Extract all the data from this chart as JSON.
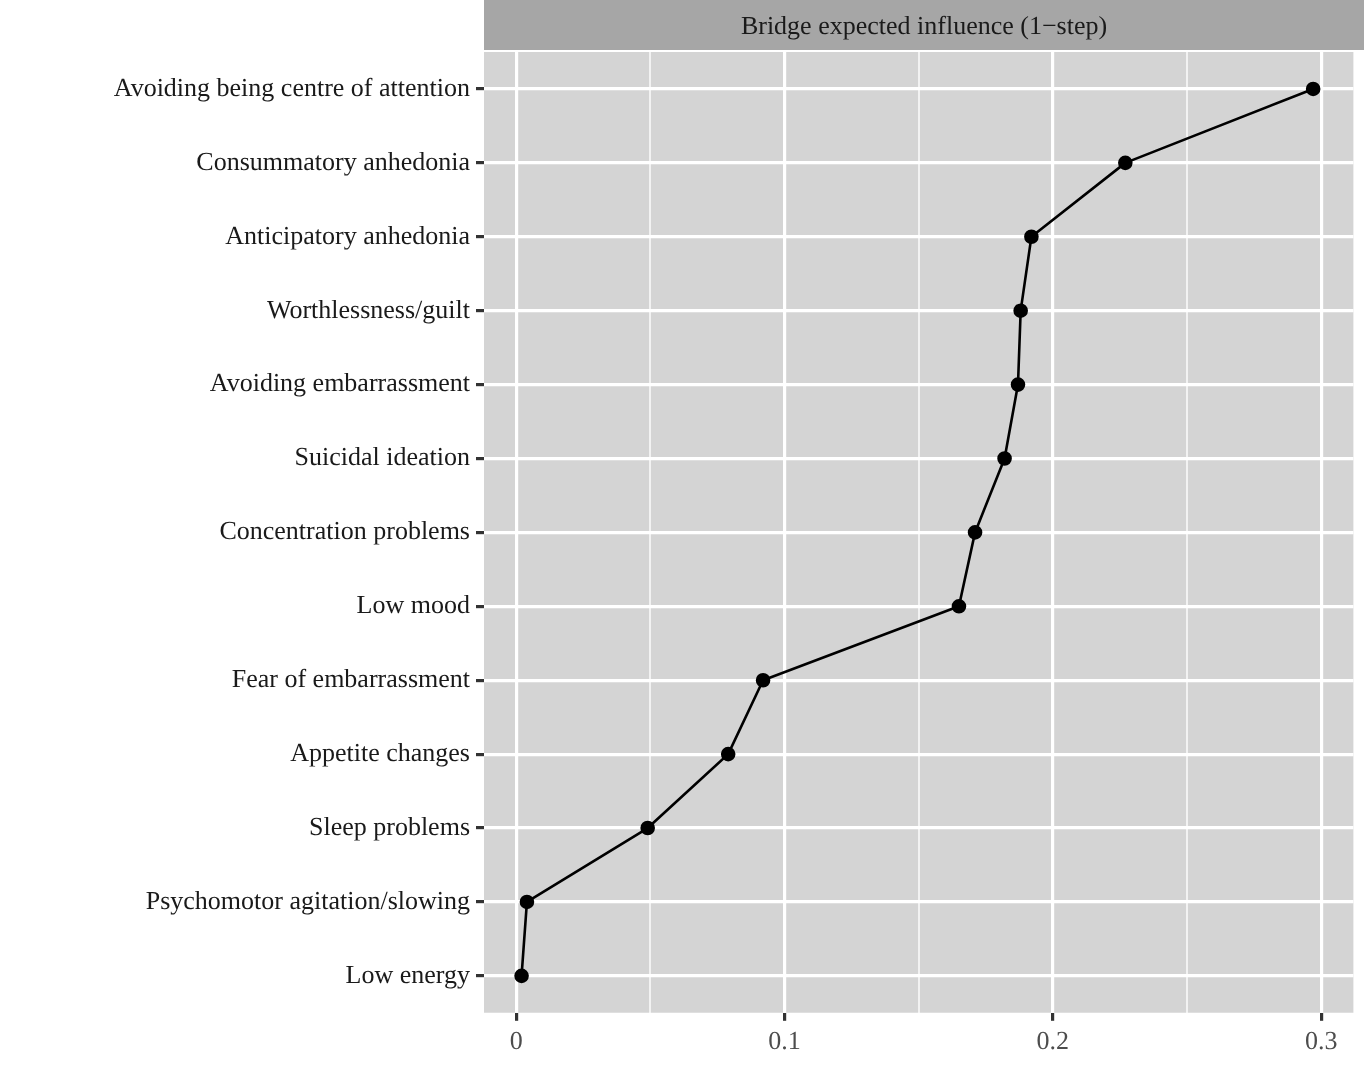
{
  "chart_data": {
    "type": "line",
    "orientation": "horizontal",
    "title": "Bridge expected influence (1−step)",
    "categories": [
      "Avoiding being centre of attention",
      "Consummatory anhedonia",
      "Anticipatory anhedonia",
      "Worthlessness/guilt",
      "Avoiding embarrassment",
      "Suicidal ideation",
      "Concentration problems",
      "Low mood",
      "Fear of embarrassment",
      "Appetite changes",
      "Sleep problems",
      "Psychomotor agitation/slowing",
      "Low energy"
    ],
    "series": [
      {
        "color": "#000000",
        "values": [
          0.297,
          0.227,
          0.192,
          0.188,
          0.187,
          0.182,
          0.171,
          0.165,
          0.092,
          0.079,
          0.049,
          0.004,
          0.002
        ]
      }
    ],
    "xlim": [
      -0.012,
      0.312
    ],
    "xticks": [
      0,
      {
        "value": 0.05,
        "label": null
      },
      0.1,
      {
        "value": 0.15,
        "label": null
      },
      0.2,
      {
        "value": 0.25,
        "label": null
      },
      0.3
    ],
    "grid": true,
    "legend": false,
    "marker": "circle",
    "line_style": "solid"
  }
}
